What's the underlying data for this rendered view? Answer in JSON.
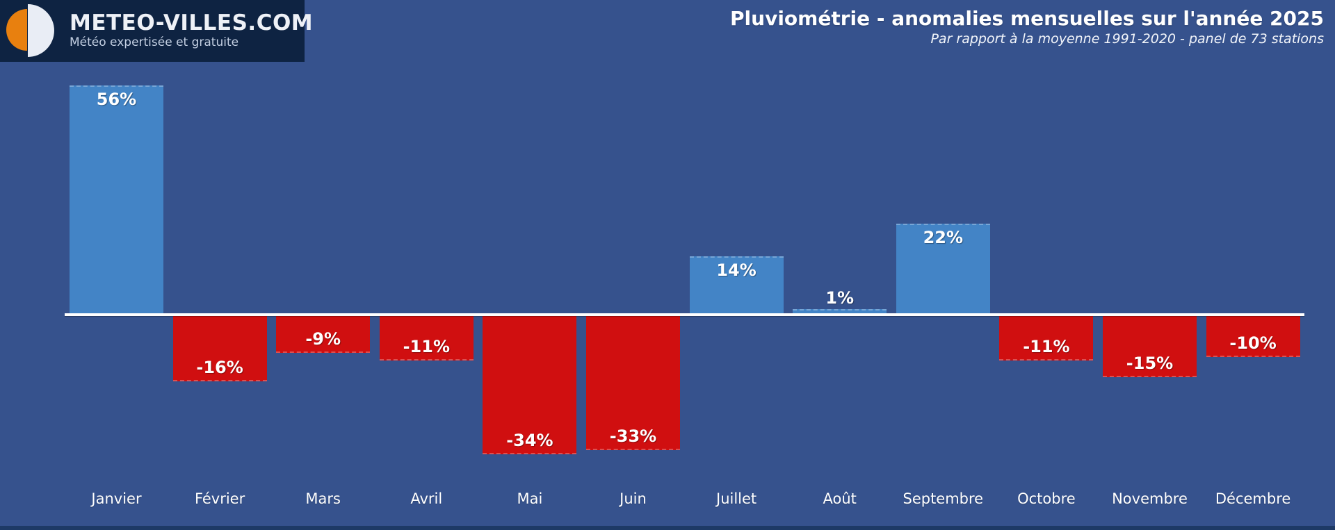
{
  "page": {
    "background_color": "#36528d",
    "bottom_strip_color": "#1e3a66"
  },
  "logo": {
    "name": "METEO-VILLES.COM",
    "tagline": "Météo expertisée et gratuite",
    "box_color": "#0e2342",
    "icon_left_color": "#e8800f",
    "icon_right_color": "#e9edf5"
  },
  "header": {
    "title": "Pluviométrie - anomalies mensuelles sur l'année 2025",
    "subtitle": "Par rapport à la moyenne 1991-2020 - panel de 73 stations"
  },
  "chart_data": {
    "type": "bar",
    "title": "Pluviométrie - anomalies mensuelles sur l'année 2025",
    "subtitle": "Par rapport à la moyenne 1991-2020 - panel de 73 stations",
    "categories": [
      "Janvier",
      "Février",
      "Mars",
      "Avril",
      "Mai",
      "Juin",
      "Juillet",
      "Août",
      "Septembre",
      "Octobre",
      "Novembre",
      "Décembre"
    ],
    "values": [
      56,
      -16,
      -9,
      -11,
      -34,
      -33,
      14,
      1,
      22,
      -11,
      -15,
      -10
    ],
    "labels": [
      "56%",
      "-16%",
      "-9%",
      "-11%",
      "-34%",
      "-33%",
      "14%",
      "1%",
      "22%",
      "-11%",
      "-15%",
      "-10%"
    ],
    "unit": "%",
    "xlabel": "",
    "ylabel": "",
    "ylim": [
      -40,
      60
    ],
    "grid": false,
    "legend": false,
    "baseline": 0,
    "positive_color": "#4384c6",
    "negative_color": "#d00f10",
    "baseline_color": "#ffffff",
    "label_color": "#ffffff"
  }
}
